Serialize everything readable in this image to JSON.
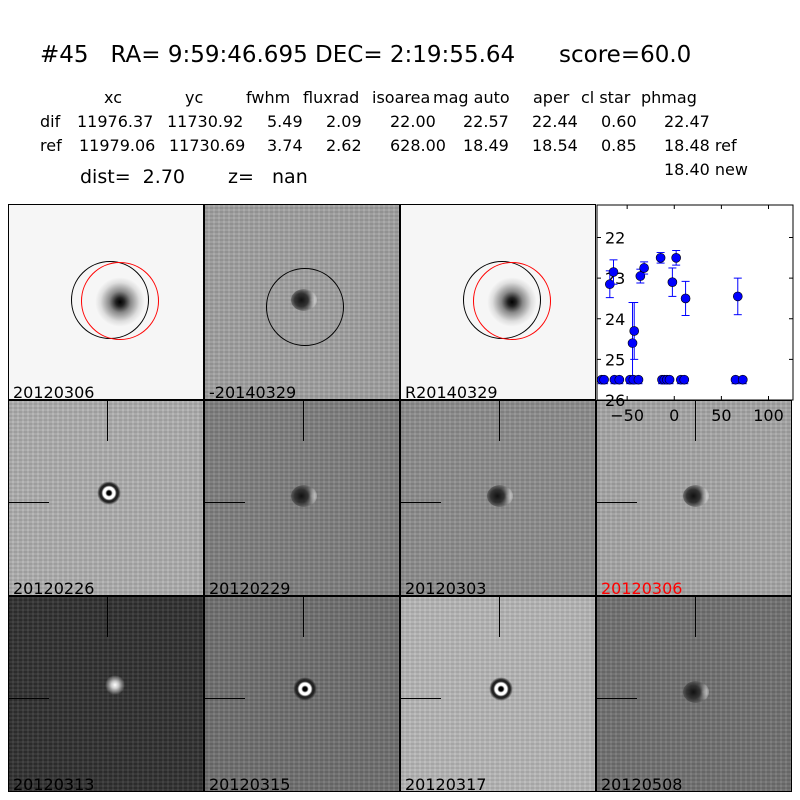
{
  "title": "#45   RA= 9:59:46.695 DEC= 2:19:55.64      score=60.0",
  "table": {
    "headers": [
      "xc",
      "yc",
      "fwhm",
      "fluxrad",
      "isoarea",
      "mag auto",
      "aper",
      "cl star",
      "phmag"
    ],
    "rows": [
      {
        "label": "dif",
        "values": [
          "11976.37",
          "11730.92",
          "5.49",
          "2.09",
          "22.00",
          "22.57",
          "22.44",
          "0.60",
          "22.47"
        ]
      },
      {
        "label": "ref",
        "values": [
          "11979.06",
          "11730.69",
          "3.74",
          "2.62",
          "628.00",
          "18.49",
          "18.54",
          "0.85",
          "18.48 ref"
        ]
      }
    ],
    "extra_phmag": "18.40 new"
  },
  "dist_text": "dist=  2.70",
  "z_text": "z=   nan",
  "panels": [
    {
      "label": "20120306",
      "bg": "#f6f6f6",
      "blob": "dark",
      "circles": [
        "black",
        "red"
      ]
    },
    {
      "label": "-20140329",
      "bg": "#a2a2a2",
      "blob": "dipole",
      "circles": [
        "black"
      ]
    },
    {
      "label": "R20140329",
      "bg": "#f6f6f6",
      "blob": "dark",
      "circles": [
        "black",
        "red"
      ]
    },
    {
      "label": "20120226",
      "bg": "#b0b0b0",
      "blob": "ring",
      "ticks": true
    },
    {
      "label": "20120229",
      "bg": "#808080",
      "blob": "dipole",
      "ticks": true
    },
    {
      "label": "20120303",
      "bg": "#8e8e8e",
      "blob": "dipole",
      "ticks": true
    },
    {
      "label": "20120306",
      "bg": "#a8a8a8",
      "blob": "dipole",
      "ticks": true,
      "label_color": "#ff0000"
    },
    {
      "label": "20120313",
      "bg": "#303030",
      "blob": "bright",
      "ticks": true
    },
    {
      "label": "20120315",
      "bg": "#707070",
      "blob": "ring",
      "ticks": true
    },
    {
      "label": "20120317",
      "bg": "#b8b8b8",
      "blob": "ring",
      "ticks": true
    },
    {
      "label": "20120508",
      "bg": "#727272",
      "blob": "dipole",
      "ticks": true
    }
  ],
  "chart_data": {
    "type": "scatter",
    "xlim": [
      -82,
      126
    ],
    "ylim": [
      26,
      21.2
    ],
    "y_inverted": true,
    "xticks": [
      -50,
      0,
      50,
      100
    ],
    "xtick_labels": [
      "−50",
      "0",
      "50",
      "100"
    ],
    "yticks": [
      22,
      23,
      24,
      25,
      26
    ],
    "ytick_labels": [
      "22",
      "23",
      "24",
      "25",
      "26"
    ],
    "color": "#0000ff",
    "detections": [
      {
        "x": -68.4,
        "y": 23.15,
        "err": 0.33
      },
      {
        "x": -64.5,
        "y": 22.85,
        "err": 0.3
      },
      {
        "x": -44.3,
        "y": 24.6,
        "err": 1.0
      },
      {
        "x": -42.5,
        "y": 24.3,
        "err": 0.7
      },
      {
        "x": -36,
        "y": 22.95,
        "err": 0.17
      },
      {
        "x": -32,
        "y": 22.75,
        "err": 0.15
      },
      {
        "x": -14.5,
        "y": 22.5,
        "err": 0.13
      },
      {
        "x": -2,
        "y": 23.1,
        "err": 0.35
      },
      {
        "x": 2,
        "y": 22.5,
        "err": 0.18
      },
      {
        "x": 12,
        "y": 23.5,
        "err": 0.42
      },
      {
        "x": 67.4,
        "y": 23.45,
        "err": 0.45
      }
    ],
    "upper_limits": {
      "y": 25.5,
      "x": [
        -77,
        -74.5,
        -63.5,
        -58.3,
        -47,
        -43.4,
        -38,
        -13,
        -10.6,
        -7.8,
        -5,
        7,
        10.6,
        65,
        72.7
      ]
    }
  }
}
